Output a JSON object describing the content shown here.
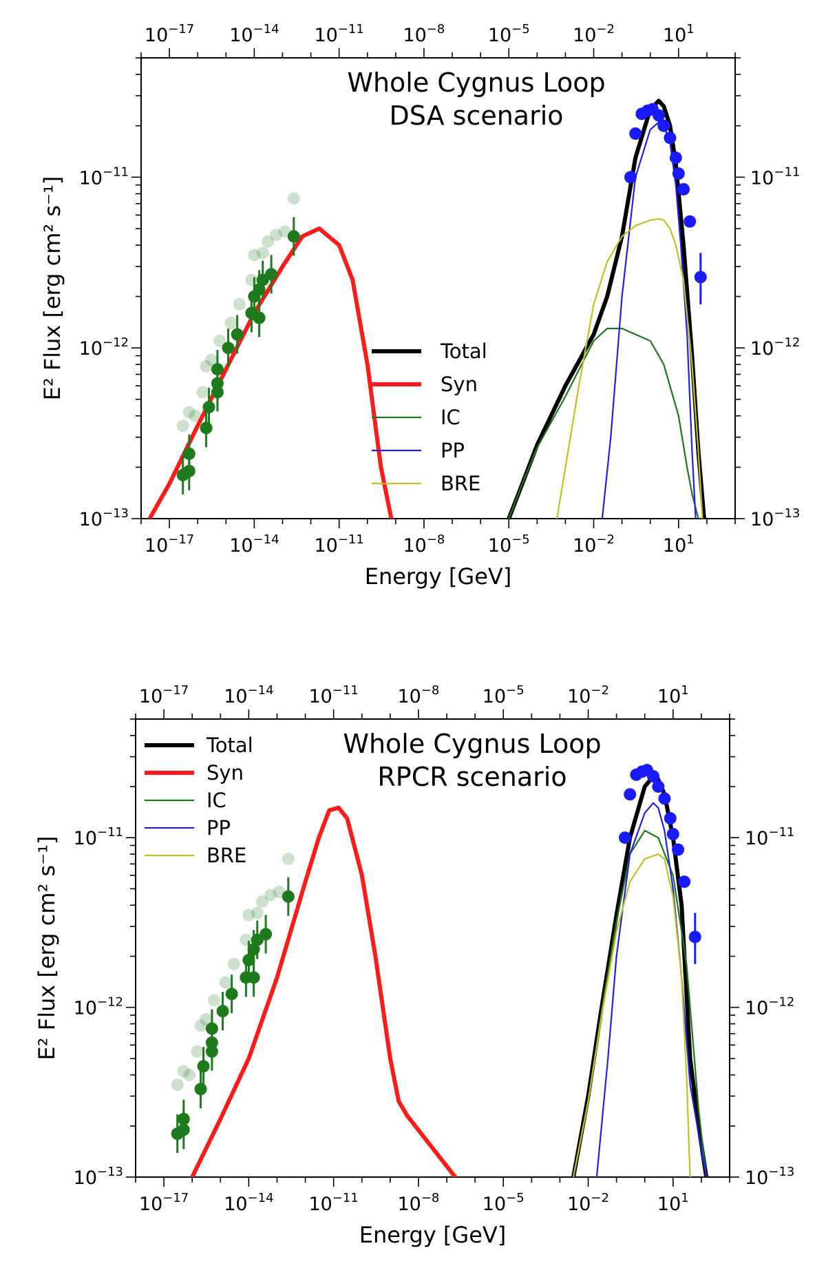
{
  "chart_data": [
    {
      "type": "line",
      "title": "Whole Cygnus Loop",
      "subtitle": "DSA scenario",
      "xlabel": "Energy [GeV]",
      "ylabel": "E² Flux [erg cm² s⁻¹]",
      "xscale": "log",
      "yscale": "log",
      "xlim": [
        1e-18,
        1000.0
      ],
      "ylim": [
        1e-13,
        5e-11
      ],
      "xticks": [
        "-17",
        "-14",
        "-11",
        "-8",
        "-5",
        "-2",
        "1"
      ],
      "yticks": [
        "-13",
        "-12",
        "-11"
      ],
      "legend_position": "center",
      "legend": [
        "Total",
        "Syn",
        "IC",
        "PP",
        "BRE"
      ],
      "colors": {
        "Total": "#000000",
        "Syn": "#ff1a1a",
        "IC": "#1a7a1a",
        "PP": "#1f1fe8",
        "BRE": "#c2c21f",
        "radio": "#1d7a1d",
        "gamma": "#1a1aff"
      },
      "series": [
        {
          "name": "Total",
          "x": [
            1e-05,
            3e-05,
            0.0001,
            0.001,
            0.01,
            0.03,
            0.1,
            0.3,
            1,
            2,
            3,
            5,
            8,
            15,
            30,
            50,
            80
          ],
          "y": [
            1e-13,
            1.6e-13,
            2.7e-13,
            6e-13,
            1.2e-12,
            2e-12,
            4.5e-12,
            1.3e-11,
            2.5e-11,
            2.8e-11,
            2.6e-11,
            2e-11,
            1.2e-11,
            4e-12,
            9e-13,
            2.5e-13,
            1e-13
          ]
        },
        {
          "name": "Syn",
          "x": [
            2e-18,
            1e-17,
            1e-16,
            1e-15,
            1e-14,
            1e-13,
            5e-13,
            2e-12,
            1e-11,
            3e-11,
            1e-10,
            3e-10,
            7e-10
          ],
          "y": [
            1e-13,
            1.6e-13,
            3.5e-13,
            7.5e-13,
            1.6e-12,
            3e-12,
            4.5e-12,
            5e-12,
            4e-12,
            2.5e-12,
            8e-13,
            2e-13,
            1e-13
          ]
        },
        {
          "name": "IC",
          "x": [
            1e-05,
            3e-05,
            0.0001,
            0.001,
            0.01,
            0.03,
            0.1,
            0.3,
            1,
            3,
            10,
            20,
            30,
            50
          ],
          "y": [
            1e-13,
            1.6e-13,
            2.6e-13,
            5.2e-13,
            1.1e-12,
            1.3e-12,
            1.3e-12,
            1.2e-12,
            1.1e-12,
            8e-13,
            4e-13,
            2e-13,
            1.4e-13,
            1e-13
          ]
        },
        {
          "name": "PP",
          "x": [
            0.02,
            0.04,
            0.1,
            0.3,
            1,
            2,
            3,
            5,
            8,
            12,
            20,
            30,
            40
          ],
          "y": [
            1e-13,
            3e-13,
            2e-12,
            1e-11,
            1.9e-11,
            2.1e-11,
            2e-11,
            1.6e-11,
            9e-12,
            4e-12,
            1.2e-12,
            2.5e-13,
            1e-13
          ]
        },
        {
          "name": "BRE",
          "x": [
            0.0005,
            0.001,
            0.003,
            0.01,
            0.03,
            0.1,
            0.3,
            1,
            2,
            3,
            5,
            8,
            15,
            30,
            50,
            70
          ],
          "y": [
            1e-13,
            2e-13,
            6e-13,
            1.8e-12,
            3.2e-12,
            4.5e-12,
            5.2e-12,
            5.6e-12,
            5.7e-12,
            5.6e-12,
            5e-12,
            4e-12,
            2.5e-12,
            8e-13,
            2.5e-13,
            1e-13
          ]
        }
      ],
      "radio_points": [
        {
          "x": 3e-17,
          "y": 1.8e-13
        },
        {
          "x": 5e-17,
          "y": 1.9e-13
        },
        {
          "x": 5e-17,
          "y": 2.4e-13
        },
        {
          "x": 2e-16,
          "y": 3.4e-13
        },
        {
          "x": 2.5e-16,
          "y": 4.5e-13
        },
        {
          "x": 5e-16,
          "y": 5.5e-13
        },
        {
          "x": 5e-16,
          "y": 6.2e-13
        },
        {
          "x": 5e-16,
          "y": 7.5e-13
        },
        {
          "x": 1.2e-15,
          "y": 1e-12
        },
        {
          "x": 2.5e-15,
          "y": 1.2e-12
        },
        {
          "x": 8e-15,
          "y": 1.6e-12
        },
        {
          "x": 1e-14,
          "y": 2e-12
        },
        {
          "x": 1.5e-14,
          "y": 2.2e-12
        },
        {
          "x": 1.5e-14,
          "y": 1.5e-12
        },
        {
          "x": 2e-14,
          "y": 2.5e-12
        },
        {
          "x": 4e-14,
          "y": 2.7e-12
        },
        {
          "x": 2.5e-13,
          "y": 4.5e-12
        }
      ],
      "radio_faint_points": [
        {
          "x": 3e-17,
          "y": 3.5e-13
        },
        {
          "x": 5e-17,
          "y": 4.2e-13
        },
        {
          "x": 8e-17,
          "y": 4e-13
        },
        {
          "x": 1.5e-16,
          "y": 5.5e-13
        },
        {
          "x": 2e-16,
          "y": 7.8e-13
        },
        {
          "x": 3e-16,
          "y": 8.5e-13
        },
        {
          "x": 6e-16,
          "y": 1.1e-12
        },
        {
          "x": 1.5e-15,
          "y": 1.4e-12
        },
        {
          "x": 3e-15,
          "y": 1.8e-12
        },
        {
          "x": 8e-15,
          "y": 2.5e-12
        },
        {
          "x": 1e-14,
          "y": 3.5e-12
        },
        {
          "x": 2e-14,
          "y": 3.6e-12
        },
        {
          "x": 3e-14,
          "y": 4.2e-12
        },
        {
          "x": 6e-14,
          "y": 4.6e-12
        },
        {
          "x": 1.2e-13,
          "y": 4.8e-12
        },
        {
          "x": 2.5e-13,
          "y": 7.5e-12
        }
      ],
      "gamma_points": [
        {
          "x": 0.2,
          "y": 1e-11
        },
        {
          "x": 0.3,
          "y": 1.8e-11
        },
        {
          "x": 0.5,
          "y": 2.35e-11
        },
        {
          "x": 0.8,
          "y": 2.45e-11
        },
        {
          "x": 1.2,
          "y": 2.5e-11
        },
        {
          "x": 2,
          "y": 2.3e-11
        },
        {
          "x": 3,
          "y": 2e-11
        },
        {
          "x": 5,
          "y": 1.7e-11
        },
        {
          "x": 8,
          "y": 1.3e-11
        },
        {
          "x": 10,
          "y": 1.05e-11
        },
        {
          "x": 15,
          "y": 8.5e-12
        },
        {
          "x": 25,
          "y": 5.5e-12
        },
        {
          "x": 60,
          "y": 2.6e-12,
          "err": [
            1.8e-12,
            3.6e-12
          ]
        }
      ]
    },
    {
      "type": "line",
      "title": "Whole Cygnus Loop",
      "subtitle": "RPCR scenario",
      "xlabel": "Energy [GeV]",
      "ylabel": "E² Flux [erg cm² s⁻¹]",
      "xscale": "log",
      "yscale": "log",
      "xlim": [
        1e-18,
        1000.0
      ],
      "ylim": [
        1e-13,
        5e-11
      ],
      "xticks": [
        "-17",
        "-14",
        "-11",
        "-8",
        "-5",
        "-2",
        "1"
      ],
      "yticks": [
        "-13",
        "-12",
        "-11"
      ],
      "legend_position": "top-left",
      "legend": [
        "Total",
        "Syn",
        "IC",
        "PP",
        "BRE"
      ],
      "colors": {
        "Total": "#000000",
        "Syn": "#ff1a1a",
        "IC": "#1a7a1a",
        "PP": "#1f1fe8",
        "BRE": "#c2c21f",
        "radio": "#1d7a1d",
        "gamma": "#1a1aff"
      },
      "series": [
        {
          "name": "Total",
          "x": [
            0.003,
            0.01,
            0.03,
            0.1,
            0.3,
            1,
            2,
            3,
            5,
            10,
            20,
            40,
            80,
            150
          ],
          "y": [
            1e-13,
            3e-13,
            1e-12,
            3.5e-12,
            1e-11,
            2e-11,
            2.3e-11,
            2.2e-11,
            1.8e-11,
            1e-11,
            4e-12,
            5e-13,
            2e-13,
            1e-13
          ]
        },
        {
          "name": "Syn",
          "x": [
            1e-16,
            1e-15,
            1e-14,
            1e-13,
            1e-12,
            3e-12,
            7e-12,
            1.5e-11,
            3e-11,
            1e-10,
            3e-10,
            1e-09,
            2e-09,
            4e-09,
            2e-07
          ],
          "y": [
            1e-13,
            2.2e-13,
            5e-13,
            1.5e-12,
            5.5e-12,
            1e-11,
            1.45e-11,
            1.5e-11,
            1.3e-11,
            6e-12,
            2e-12,
            5e-13,
            2.8e-13,
            2.3e-13,
            1e-13
          ]
        },
        {
          "name": "IC",
          "x": [
            0.003,
            0.01,
            0.03,
            0.1,
            0.3,
            1,
            3,
            10,
            30,
            80,
            150
          ],
          "y": [
            1e-13,
            2.8e-13,
            9.5e-13,
            3.2e-12,
            8e-12,
            1.1e-11,
            1e-11,
            6e-12,
            1.8e-12,
            2.5e-13,
            1e-13
          ]
        },
        {
          "name": "PP",
          "x": [
            0.02,
            0.05,
            0.1,
            0.3,
            1,
            2,
            3,
            5,
            10,
            20,
            40,
            80,
            150
          ],
          "y": [
            1e-13,
            5e-13,
            2e-12,
            8e-12,
            1.4e-11,
            1.6e-11,
            1.5e-11,
            1.1e-11,
            5e-12,
            1.5e-12,
            3.5e-13,
            1.8e-13,
            1e-13
          ]
        },
        {
          "name": "BRE",
          "x": [
            0.003,
            0.01,
            0.03,
            0.1,
            0.3,
            1,
            3,
            5,
            10,
            20,
            30,
            40
          ],
          "y": [
            1e-13,
            2.8e-13,
            9e-13,
            2.8e-12,
            5.5e-12,
            7.5e-12,
            8e-12,
            7.5e-12,
            4.5e-12,
            1.5e-12,
            4e-13,
            1e-13
          ]
        }
      ],
      "radio_points": [
        {
          "x": 3e-17,
          "y": 1.8e-13
        },
        {
          "x": 5e-17,
          "y": 1.9e-13
        },
        {
          "x": 5e-17,
          "y": 2.2e-13
        },
        {
          "x": 2e-16,
          "y": 3.3e-13
        },
        {
          "x": 2.5e-16,
          "y": 4.5e-13
        },
        {
          "x": 5e-16,
          "y": 5.5e-13
        },
        {
          "x": 5e-16,
          "y": 6.2e-13
        },
        {
          "x": 5e-16,
          "y": 7.5e-13
        },
        {
          "x": 1.2e-15,
          "y": 9.5e-13
        },
        {
          "x": 2.5e-15,
          "y": 1.2e-12
        },
        {
          "x": 8e-15,
          "y": 1.5e-12
        },
        {
          "x": 1e-14,
          "y": 1.9e-12
        },
        {
          "x": 1.5e-14,
          "y": 2.2e-12
        },
        {
          "x": 1.5e-14,
          "y": 1.5e-12
        },
        {
          "x": 2e-14,
          "y": 2.5e-12
        },
        {
          "x": 4e-14,
          "y": 2.7e-12
        },
        {
          "x": 2.5e-13,
          "y": 4.5e-12
        }
      ],
      "radio_faint_points": [
        {
          "x": 3e-17,
          "y": 3.5e-13
        },
        {
          "x": 5e-17,
          "y": 4.2e-13
        },
        {
          "x": 8e-17,
          "y": 4e-13
        },
        {
          "x": 1.5e-16,
          "y": 5.5e-13
        },
        {
          "x": 2e-16,
          "y": 7.8e-13
        },
        {
          "x": 3e-16,
          "y": 8.5e-13
        },
        {
          "x": 6e-16,
          "y": 1.1e-12
        },
        {
          "x": 1.5e-15,
          "y": 1.4e-12
        },
        {
          "x": 3e-15,
          "y": 1.8e-12
        },
        {
          "x": 8e-15,
          "y": 2.5e-12
        },
        {
          "x": 1e-14,
          "y": 3.5e-12
        },
        {
          "x": 2e-14,
          "y": 3.6e-12
        },
        {
          "x": 3e-14,
          "y": 4.2e-12
        },
        {
          "x": 6e-14,
          "y": 4.6e-12
        },
        {
          "x": 1.2e-13,
          "y": 4.8e-12
        },
        {
          "x": 2.5e-13,
          "y": 7.5e-12
        }
      ],
      "gamma_points": [
        {
          "x": 0.2,
          "y": 1e-11
        },
        {
          "x": 0.3,
          "y": 1.8e-11
        },
        {
          "x": 0.5,
          "y": 2.35e-11
        },
        {
          "x": 0.8,
          "y": 2.45e-11
        },
        {
          "x": 1.2,
          "y": 2.5e-11
        },
        {
          "x": 2,
          "y": 2.3e-11
        },
        {
          "x": 3,
          "y": 2e-11
        },
        {
          "x": 5,
          "y": 1.7e-11
        },
        {
          "x": 8,
          "y": 1.3e-11
        },
        {
          "x": 10,
          "y": 1.05e-11
        },
        {
          "x": 15,
          "y": 8.5e-12
        },
        {
          "x": 25,
          "y": 5.5e-12
        },
        {
          "x": 60,
          "y": 2.6e-12,
          "err": [
            1.8e-12,
            3.6e-12
          ]
        }
      ]
    }
  ]
}
